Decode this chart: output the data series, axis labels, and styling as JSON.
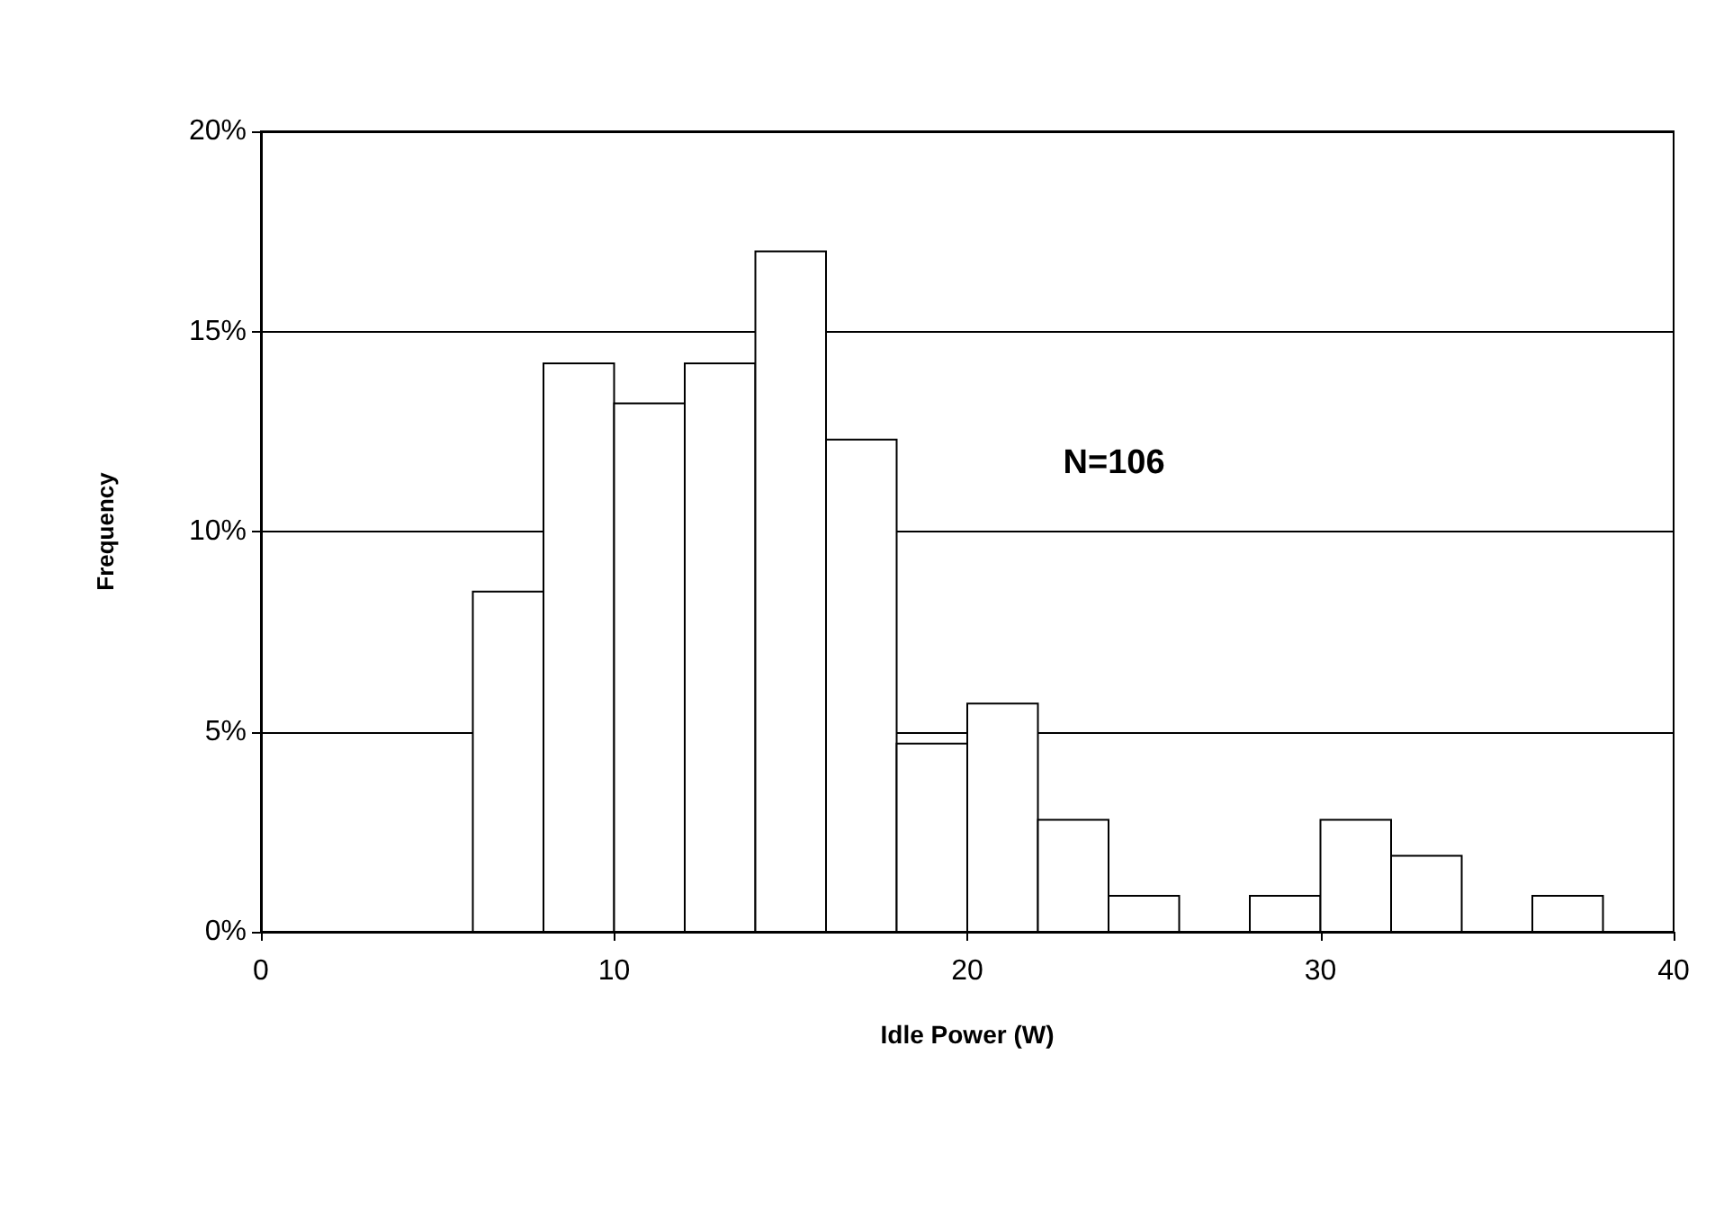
{
  "chart_data": {
    "type": "histogram",
    "xlabel": "Idle Power (W)",
    "ylabel": "Frequency",
    "annotations": [
      "N=106"
    ],
    "bins": [
      6,
      8,
      10,
      12,
      14,
      16,
      18,
      20,
      22,
      24,
      26,
      28,
      30,
      32,
      34,
      36,
      38
    ],
    "values": [
      8.5,
      14.2,
      13.2,
      14.2,
      17.0,
      12.3,
      4.7,
      5.7,
      2.8,
      0.9,
      0,
      0.9,
      2.8,
      1.9,
      0,
      0.9
    ],
    "color": "#ffffff",
    "xlim": [
      0,
      40
    ],
    "xticks": [
      0,
      10,
      20,
      30,
      40
    ],
    "ylim": [
      0,
      20
    ],
    "yticks": [
      {
        "value": 0,
        "label": "0%"
      },
      {
        "value": 5,
        "label": "5%"
      },
      {
        "value": 10,
        "label": "10%"
      },
      {
        "value": 15,
        "label": "15%"
      },
      {
        "value": 20,
        "label": "20%"
      }
    ],
    "grid": "y"
  }
}
